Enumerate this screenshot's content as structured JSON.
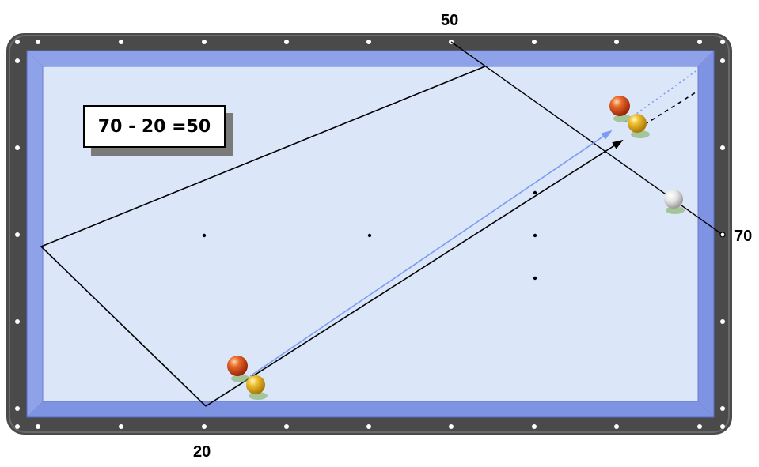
{
  "labels": {
    "top_mark": "50",
    "right_mark": "70",
    "bottom_mark": "20"
  },
  "formula": "70 - 20 =50",
  "colors": {
    "rail": "#4a4a4a",
    "cushion": "#8d9fe8",
    "cloth": "#dce6f9",
    "cue_path": "#000000",
    "object_path": "#7b9cf0",
    "red_ball": "#cc3a10",
    "yellow_ball": "#e0a818",
    "white_ball": "#e6e6e6"
  }
}
